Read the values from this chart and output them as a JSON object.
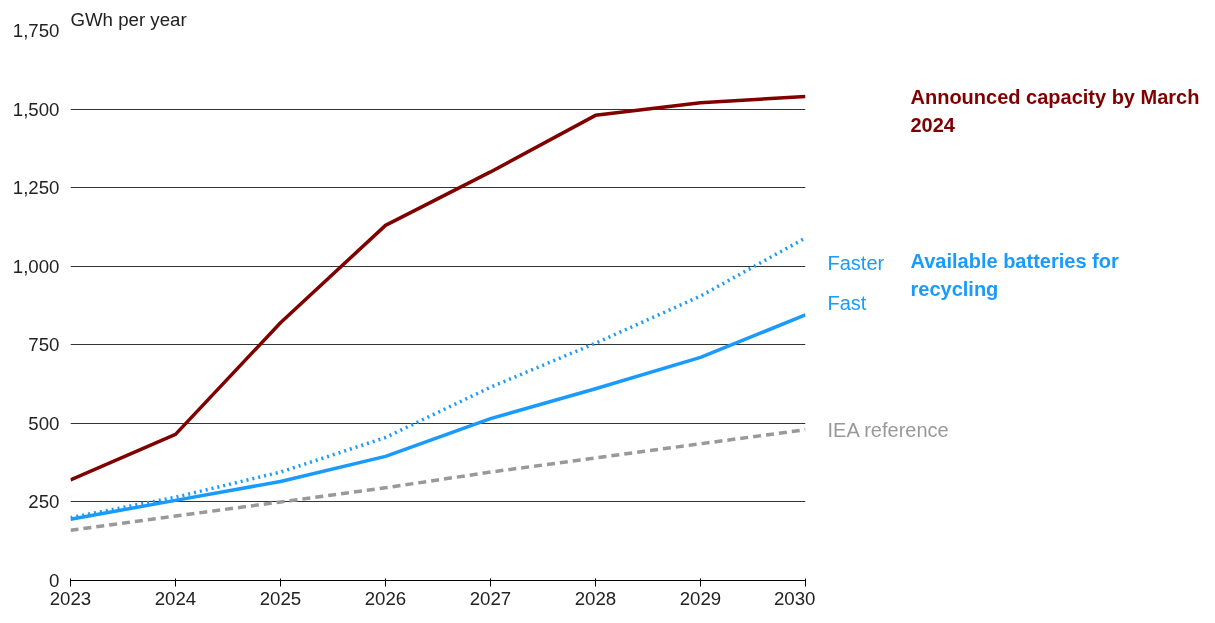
{
  "chart_data": {
    "type": "line",
    "ylabel": "GWh per year",
    "x": [
      2023,
      2024,
      2025,
      2026,
      2027,
      2028,
      2029,
      2030
    ],
    "series": [
      {
        "name": "Announced capacity by March 2024",
        "color": "#800000",
        "line_style": "solid",
        "values": [
          320,
          465,
          820,
          1130,
          1300,
          1480,
          1520,
          1540
        ]
      },
      {
        "name": "Faster",
        "color": "#1a9bfc",
        "line_style": "dotted",
        "values": [
          200,
          265,
          345,
          455,
          615,
          755,
          905,
          1090
        ]
      },
      {
        "name": "Fast",
        "color": "#1a9bfc",
        "line_style": "solid",
        "values": [
          195,
          255,
          315,
          395,
          515,
          610,
          710,
          845
        ]
      },
      {
        "name": "IEA reference",
        "color": "#999999",
        "line_style": "dashed",
        "values": [
          160,
          205,
          250,
          295,
          345,
          390,
          435,
          480
        ]
      }
    ],
    "annotations": [
      "Available batteries for recycling"
    ],
    "xlim": [
      2023,
      2030
    ],
    "xticks": [
      2023,
      2024,
      2025,
      2026,
      2027,
      2028,
      2029,
      2030
    ],
    "ylim": [
      0,
      1750
    ],
    "yticks": [
      0,
      250,
      500,
      750,
      {
        "value": 1000,
        "label": "1,000"
      },
      {
        "value": 1250,
        "label": "1,250"
      },
      {
        "value": 1500,
        "label": "1,500"
      },
      {
        "value": 1750,
        "label": "1,750"
      }
    ],
    "grid": "y"
  }
}
